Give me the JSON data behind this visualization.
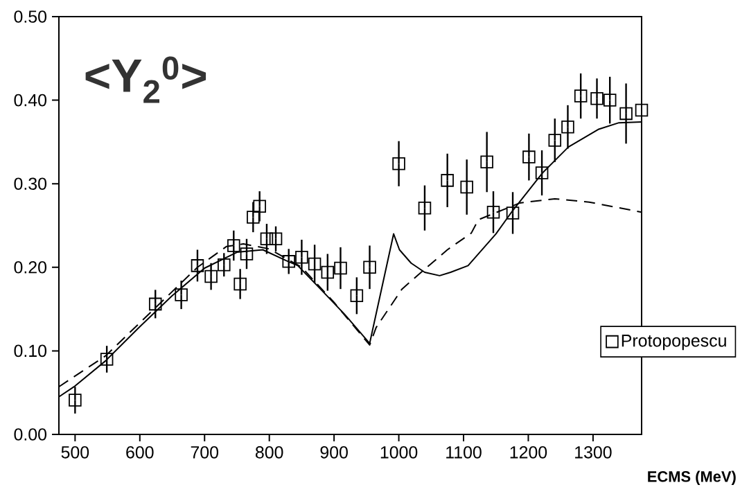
{
  "chart_data": {
    "type": "scatter",
    "title": "<Y$_{2}$$^{0}$>",
    "xlabel": "ECMS (MeV)",
    "xlim": [
      475,
      1375
    ],
    "ylim": [
      0,
      0.5
    ],
    "xticks": [
      500,
      600,
      700,
      800,
      900,
      1000,
      1100,
      1200,
      1300
    ],
    "yticks": [
      {
        "value": 0,
        "label": "0.00"
      },
      {
        "value": 0.1,
        "label": "0.10"
      },
      {
        "value": 0.2,
        "label": "0.20"
      },
      {
        "value": 0.3,
        "label": "0.30"
      },
      {
        "value": 0.4,
        "label": "0.40"
      },
      {
        "value": 0.5,
        "label": "0.50"
      }
    ],
    "legend": "bottom right",
    "grid": false,
    "series": [
      {
        "name": "Protopopescu",
        "color": "#000000",
        "marker": "square",
        "x": [
          500,
          549,
          624,
          664,
          689,
          710,
          730,
          745,
          755,
          765,
          775,
          785,
          796,
          810,
          830,
          850,
          870,
          890,
          910,
          935,
          955,
          1000,
          1040,
          1075,
          1105,
          1136,
          1146,
          1176,
          1201,
          1221,
          1241,
          1261,
          1281,
          1306,
          1326,
          1351,
          1375
        ],
        "values": [
          0.041,
          0.09,
          0.156,
          0.167,
          0.202,
          0.189,
          0.203,
          0.226,
          0.18,
          0.216,
          0.26,
          0.273,
          0.234,
          0.234,
          0.207,
          0.212,
          0.204,
          0.194,
          0.199,
          0.166,
          0.2,
          0.324,
          0.271,
          0.304,
          0.296,
          0.326,
          0.266,
          0.265,
          0.332,
          0.313,
          0.352,
          0.368,
          0.405,
          0.402,
          0.4,
          0.384,
          0.388
        ],
        "errors": [
          0.016,
          0.016,
          0.017,
          0.017,
          0.019,
          0.016,
          0.014,
          0.018,
          0.018,
          0.018,
          0.018,
          0.018,
          0.018,
          0.015,
          0.015,
          0.021,
          0.023,
          0.022,
          0.025,
          0.022,
          0.026,
          0.027,
          0.027,
          0.032,
          0.033,
          0.036,
          0.025,
          0.025,
          0.028,
          0.027,
          0.026,
          0.026,
          0.027,
          0.024,
          0.028,
          0.036,
          null
        ]
      },
      {
        "type": "line",
        "color": "#000000",
        "line_style": "solid",
        "x": [
          475,
          500,
          547,
          600,
          650,
          700,
          750,
          790,
          826,
          844,
          879,
          916,
          955,
          992,
          1001,
          1019,
          1040,
          1063,
          1080,
          1107,
          1150,
          1176,
          1222,
          1262,
          1308,
          1340,
          1375
        ],
        "values": [
          0.045,
          0.058,
          0.088,
          0.129,
          0.166,
          0.199,
          0.218,
          0.221,
          0.208,
          0.202,
          0.174,
          0.144,
          0.109,
          0.24,
          0.221,
          0.205,
          0.194,
          0.19,
          0.194,
          0.202,
          0.24,
          0.268,
          0.313,
          0.344,
          0.365,
          0.373,
          0.374
        ]
      },
      {
        "type": "line",
        "color": "#000000",
        "line_style": "dashed",
        "x": [
          475,
          547,
          626,
          689,
          734,
          760,
          800,
          850,
          900,
          955,
          965,
          1005,
          1033,
          1075,
          1112,
          1123,
          1187,
          1241,
          1294,
          1375
        ],
        "values": [
          0.057,
          0.094,
          0.153,
          0.2,
          0.225,
          0.228,
          0.222,
          0.2,
          0.158,
          0.107,
          0.128,
          0.174,
          0.193,
          0.221,
          0.241,
          0.257,
          0.277,
          0.282,
          0.278,
          0.266
        ]
      }
    ]
  }
}
